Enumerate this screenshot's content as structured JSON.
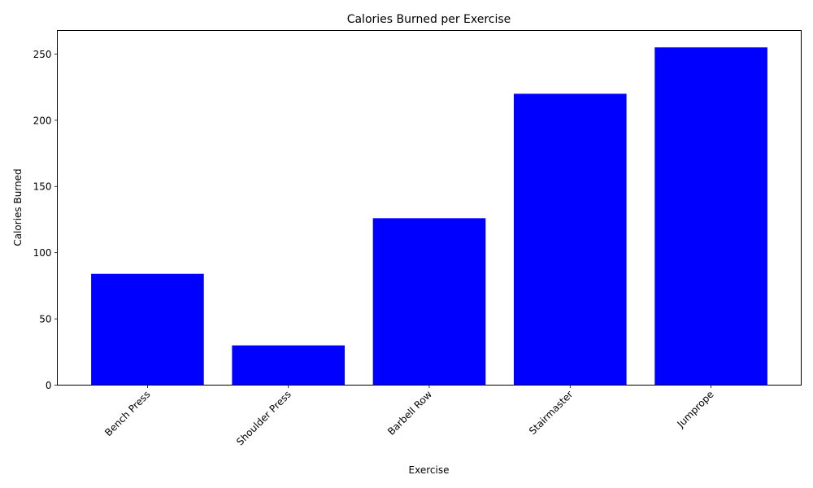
{
  "chart_data": {
    "type": "bar",
    "title": "Calories Burned per Exercise",
    "xlabel": "Exercise",
    "ylabel": "Calories Burned",
    "categories": [
      "Bench Press",
      "Shoulder Press",
      "Barbell Row",
      "Stairmaster",
      "Jumprope"
    ],
    "values": [
      84,
      30,
      126,
      220,
      255
    ],
    "ylim": [
      0,
      267.75
    ],
    "yticks": [
      0,
      50,
      100,
      150,
      200,
      250
    ],
    "bar_color": "#0000ff",
    "grid": false,
    "legend": "none"
  }
}
